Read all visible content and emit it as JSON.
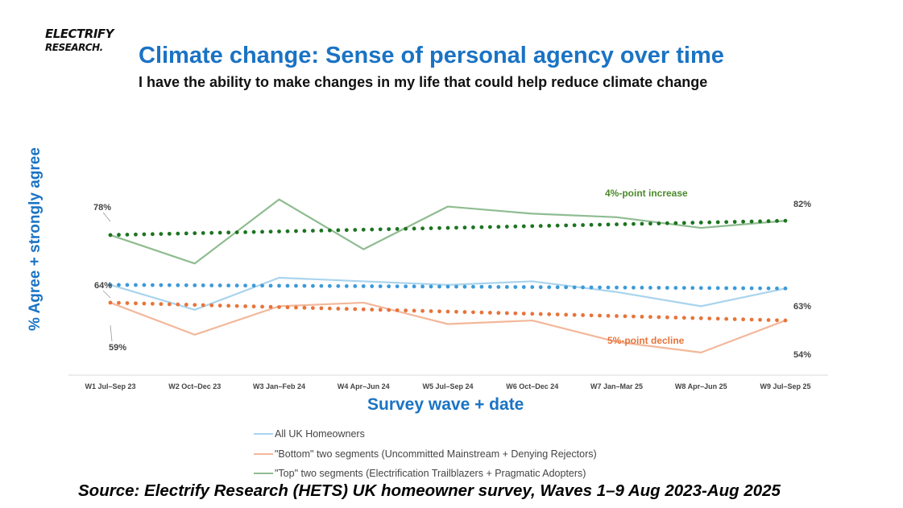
{
  "logo": {
    "line1": "ELECTRIFY",
    "line2": "RESEARCH."
  },
  "header": {
    "title": "Climate change:  Sense of personal agency over time",
    "subtitle": "I have the ability to make changes in my life that could help reduce climate change"
  },
  "footer": {
    "source": "Source: Electrify Research (HETS) UK homeowner survey, Waves 1–9 Aug 2023-Aug 2025"
  },
  "chart_data": {
    "type": "line",
    "title": "Climate change:  Sense of personal agency over time",
    "xlabel": "Survey wave + date",
    "ylabel": "% Agree + strongly agree",
    "ylim": [
      40,
      92
    ],
    "categories": [
      "W1 Jul–Sep 23",
      "W2 Oct–Dec 23",
      "W3 Jan–Feb 24",
      "W4 Apr–Jun 24",
      "W5 Jul–Sep 24",
      "W6 Oct–Dec 24",
      "W7 Jan–Mar 25",
      "W8 Apr–Jun 25",
      "W9 Jul–Sep 25"
    ],
    "series": [
      {
        "name": "All UK Homeowners",
        "color": "#a9d4ee",
        "values": [
          64,
          57,
          66,
          65,
          64,
          65,
          62,
          58,
          63
        ],
        "trend": [
          64,
          63
        ]
      },
      {
        "name": "\"Bottom\" two segments (Uncommitted Mainstream + Denying Rejectors)",
        "color": "#f3b79a",
        "values": [
          59,
          50,
          58,
          59,
          53,
          54,
          48,
          45,
          54
        ],
        "trend": [
          59,
          54
        ]
      },
      {
        "name": "\"Top\" two segments (Electrification Trailblazers + Pragmatic Adopters)",
        "color": "#8fbc91",
        "values": [
          78,
          70,
          88,
          74,
          86,
          84,
          83,
          80,
          82
        ],
        "trend": [
          78,
          82
        ]
      }
    ],
    "trend_colors": [
      "#3c9ad8",
      "#e7743a",
      "#1c7420"
    ],
    "value_labels": {
      "top_start": "78%",
      "top_end": "82%",
      "all_start": "64%",
      "all_end": "63%",
      "bottom_start": "59%",
      "bottom_end": "54%"
    },
    "annotations": [
      {
        "text": "4%-point increase",
        "color": "#4a8a2a"
      },
      {
        "text": "5%-point decline",
        "color": "#e7743a"
      }
    ]
  }
}
